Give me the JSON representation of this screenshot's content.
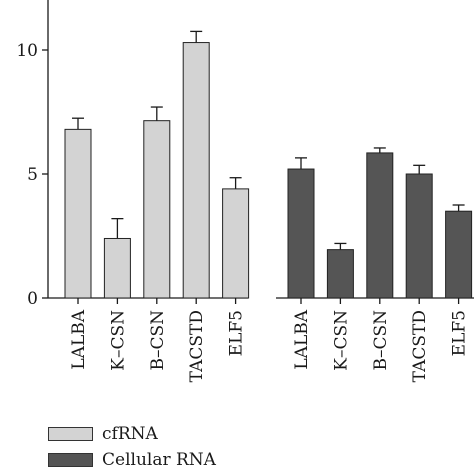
{
  "chart_data": {
    "type": "bar",
    "title": "",
    "xlabel": "",
    "ylabel": "",
    "ylim": [
      0,
      12
    ],
    "yticks": [
      0,
      5,
      10
    ],
    "grid": false,
    "legend_position": "bottom-left",
    "groups": [
      {
        "name": "cfRNA",
        "color": "#d3d3d3",
        "categories": [
          "LALBA",
          "K–CSN",
          "B–CSN",
          "TACSTD",
          "ELF5"
        ],
        "values": [
          6.8,
          2.4,
          7.15,
          10.3,
          4.4
        ],
        "errors": [
          0.45,
          0.8,
          0.55,
          0.45,
          0.45
        ]
      },
      {
        "name": "Cellular RNA",
        "color": "#555555",
        "categories": [
          "LALBA",
          "K–CSN",
          "B–CSN",
          "TACSTD",
          "ELF5"
        ],
        "values": [
          5.2,
          1.95,
          5.85,
          5.0,
          3.5
        ],
        "errors": [
          0.45,
          0.25,
          0.2,
          0.35,
          0.25
        ]
      }
    ]
  },
  "legend": {
    "items": [
      {
        "label": "cfRNA",
        "color": "#d3d3d3"
      },
      {
        "label": "Cellular RNA",
        "color": "#555555"
      }
    ]
  }
}
